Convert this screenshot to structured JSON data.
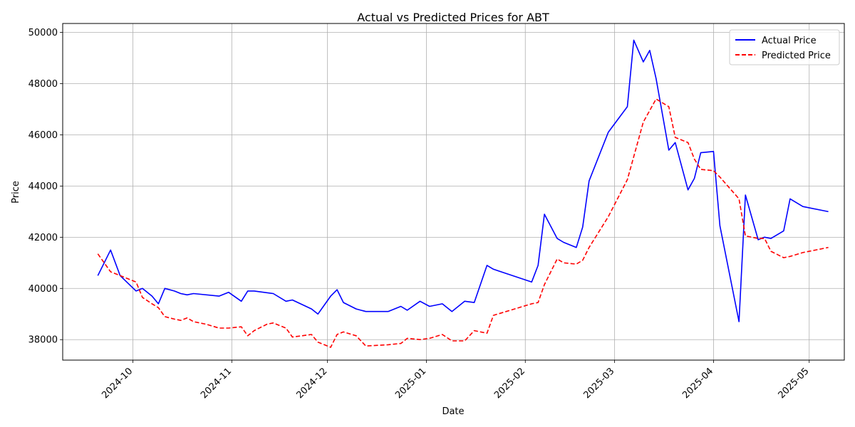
{
  "chart_data": {
    "type": "line",
    "title": "Actual vs Predicted Prices for ABT",
    "xlabel": "Date",
    "ylabel": "Price",
    "xlim": [
      "2024-09-09",
      "2025-05-12"
    ],
    "ylim": [
      37200,
      50350
    ],
    "x_ticks": [
      "2024-10-01",
      "2024-11-01",
      "2024-12-01",
      "2025-01-01",
      "2025-02-01",
      "2025-03-01",
      "2025-04-01",
      "2025-05-01"
    ],
    "x_tick_labels": [
      "2024-10",
      "2024-11",
      "2024-12",
      "2025-01",
      "2025-02",
      "2025-03",
      "2025-04",
      "2025-05"
    ],
    "y_ticks": [
      38000,
      40000,
      42000,
      44000,
      46000,
      48000,
      50000
    ],
    "y_tick_labels": [
      "38000",
      "40000",
      "42000",
      "44000",
      "46000",
      "48000",
      "50000"
    ],
    "grid": true,
    "legend_position": "top-right",
    "series": [
      {
        "name": "Actual Price",
        "color": "#0000ff",
        "style": "solid",
        "points": [
          [
            "2024-09-20",
            40500
          ],
          [
            "2024-09-24",
            41500
          ],
          [
            "2024-09-27",
            40500
          ],
          [
            "2024-10-02",
            39900
          ],
          [
            "2024-10-04",
            40000
          ],
          [
            "2024-10-07",
            39700
          ],
          [
            "2024-10-09",
            39400
          ],
          [
            "2024-10-11",
            40000
          ],
          [
            "2024-10-14",
            39900
          ],
          [
            "2024-10-16",
            39800
          ],
          [
            "2024-10-18",
            39750
          ],
          [
            "2024-10-20",
            39800
          ],
          [
            "2024-10-28",
            39700
          ],
          [
            "2024-10-31",
            39850
          ],
          [
            "2024-11-04",
            39500
          ],
          [
            "2024-11-06",
            39900
          ],
          [
            "2024-11-08",
            39900
          ],
          [
            "2024-11-14",
            39800
          ],
          [
            "2024-11-18",
            39500
          ],
          [
            "2024-11-20",
            39550
          ],
          [
            "2024-11-26",
            39200
          ],
          [
            "2024-11-28",
            39000
          ],
          [
            "2024-12-02",
            39700
          ],
          [
            "2024-12-04",
            39950
          ],
          [
            "2024-12-06",
            39450
          ],
          [
            "2024-12-10",
            39200
          ],
          [
            "2024-12-13",
            39100
          ],
          [
            "2024-12-20",
            39100
          ],
          [
            "2024-12-24",
            39300
          ],
          [
            "2024-12-26",
            39150
          ],
          [
            "2024-12-30",
            39500
          ],
          [
            "2025-01-02",
            39300
          ],
          [
            "2025-01-06",
            39400
          ],
          [
            "2025-01-09",
            39100
          ],
          [
            "2025-01-13",
            39500
          ],
          [
            "2025-01-16",
            39450
          ],
          [
            "2025-01-20",
            40900
          ],
          [
            "2025-01-22",
            40750
          ],
          [
            "2025-02-03",
            40250
          ],
          [
            "2025-02-05",
            40900
          ],
          [
            "2025-02-07",
            42900
          ],
          [
            "2025-02-11",
            41950
          ],
          [
            "2025-02-13",
            41800
          ],
          [
            "2025-02-17",
            41600
          ],
          [
            "2025-02-19",
            42400
          ],
          [
            "2025-02-21",
            44200
          ],
          [
            "2025-02-27",
            46100
          ],
          [
            "2025-03-05",
            47100
          ],
          [
            "2025-03-07",
            49700
          ],
          [
            "2025-03-10",
            48850
          ],
          [
            "2025-03-12",
            49300
          ],
          [
            "2025-03-14",
            48200
          ],
          [
            "2025-03-18",
            45400
          ],
          [
            "2025-03-20",
            45700
          ],
          [
            "2025-03-24",
            43850
          ],
          [
            "2025-03-26",
            44300
          ],
          [
            "2025-03-28",
            45300
          ],
          [
            "2025-04-01",
            45350
          ],
          [
            "2025-04-03",
            42450
          ],
          [
            "2025-04-09",
            38700
          ],
          [
            "2025-04-11",
            43650
          ],
          [
            "2025-04-15",
            41900
          ],
          [
            "2025-04-17",
            42000
          ],
          [
            "2025-04-19",
            41950
          ],
          [
            "2025-04-23",
            42250
          ],
          [
            "2025-04-25",
            43500
          ],
          [
            "2025-04-29",
            43200
          ],
          [
            "2025-05-07",
            43000
          ]
        ]
      },
      {
        "name": "Predicted Price",
        "color": "#ff0000",
        "style": "dashed",
        "points": [
          [
            "2024-09-20",
            41350
          ],
          [
            "2024-09-24",
            40650
          ],
          [
            "2024-09-27",
            40500
          ],
          [
            "2024-10-02",
            40250
          ],
          [
            "2024-10-04",
            39650
          ],
          [
            "2024-10-07",
            39400
          ],
          [
            "2024-10-09",
            39250
          ],
          [
            "2024-10-11",
            38900
          ],
          [
            "2024-10-14",
            38800
          ],
          [
            "2024-10-16",
            38750
          ],
          [
            "2024-10-18",
            38850
          ],
          [
            "2024-10-20",
            38700
          ],
          [
            "2024-10-24",
            38600
          ],
          [
            "2024-10-28",
            38450
          ],
          [
            "2024-10-31",
            38450
          ],
          [
            "2024-11-04",
            38500
          ],
          [
            "2024-11-06",
            38150
          ],
          [
            "2024-11-08",
            38350
          ],
          [
            "2024-11-12",
            38600
          ],
          [
            "2024-11-14",
            38650
          ],
          [
            "2024-11-18",
            38450
          ],
          [
            "2024-11-20",
            38100
          ],
          [
            "2024-11-26",
            38200
          ],
          [
            "2024-11-28",
            37900
          ],
          [
            "2024-12-02",
            37700
          ],
          [
            "2024-12-04",
            38200
          ],
          [
            "2024-12-06",
            38300
          ],
          [
            "2024-12-10",
            38150
          ],
          [
            "2024-12-13",
            37750
          ],
          [
            "2024-12-20",
            37800
          ],
          [
            "2024-12-24",
            37850
          ],
          [
            "2024-12-26",
            38050
          ],
          [
            "2024-12-30",
            38000
          ],
          [
            "2025-01-02",
            38050
          ],
          [
            "2025-01-06",
            38200
          ],
          [
            "2025-01-09",
            37950
          ],
          [
            "2025-01-13",
            37950
          ],
          [
            "2025-01-16",
            38350
          ],
          [
            "2025-01-20",
            38250
          ],
          [
            "2025-01-22",
            38950
          ],
          [
            "2025-02-03",
            39400
          ],
          [
            "2025-02-05",
            39450
          ],
          [
            "2025-02-07",
            40150
          ],
          [
            "2025-02-11",
            41150
          ],
          [
            "2025-02-13",
            41000
          ],
          [
            "2025-02-17",
            40950
          ],
          [
            "2025-02-19",
            41100
          ],
          [
            "2025-02-21",
            41600
          ],
          [
            "2025-02-27",
            42800
          ],
          [
            "2025-03-05",
            44250
          ],
          [
            "2025-03-07",
            45150
          ],
          [
            "2025-03-10",
            46500
          ],
          [
            "2025-03-14",
            47400
          ],
          [
            "2025-03-18",
            47100
          ],
          [
            "2025-03-20",
            45900
          ],
          [
            "2025-03-24",
            45700
          ],
          [
            "2025-03-26",
            45050
          ],
          [
            "2025-03-28",
            44650
          ],
          [
            "2025-04-01",
            44600
          ],
          [
            "2025-04-03",
            44350
          ],
          [
            "2025-04-09",
            43500
          ],
          [
            "2025-04-11",
            42050
          ],
          [
            "2025-04-15",
            41950
          ],
          [
            "2025-04-17",
            41950
          ],
          [
            "2025-04-19",
            41450
          ],
          [
            "2025-04-23",
            41200
          ],
          [
            "2025-04-25",
            41250
          ],
          [
            "2025-04-29",
            41400
          ],
          [
            "2025-05-07",
            41600
          ]
        ]
      }
    ]
  }
}
